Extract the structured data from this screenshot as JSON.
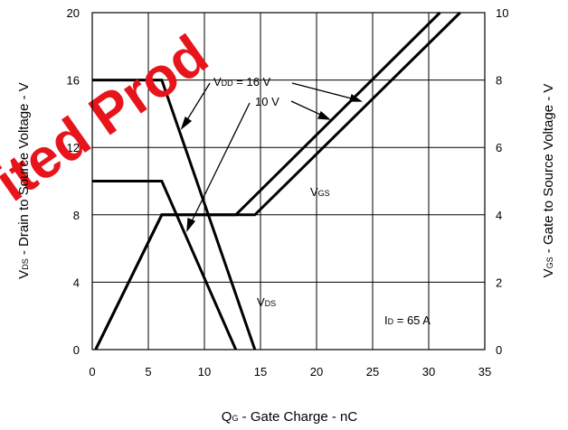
{
  "chart_data": {
    "type": "line",
    "title": "",
    "x": {
      "label_main": "Q",
      "label_sub": "G",
      "label_rest": " - Gate Charge - nC",
      "min": 0,
      "max": 35,
      "ticks": [
        0,
        5,
        10,
        15,
        20,
        25,
        30,
        35
      ]
    },
    "y_left": {
      "label_main": "V",
      "label_sub": "DS",
      "label_rest": " - Drain to Source Voltage - V",
      "min": 0,
      "max": 20,
      "ticks": [
        0,
        4,
        8,
        12,
        16,
        20
      ]
    },
    "y_right": {
      "label_main": "V",
      "label_sub": "GS",
      "label_rest": " - Gate to Source Voltage - V",
      "min": 0,
      "max": 10,
      "ticks": [
        0,
        2,
        4,
        6,
        8,
        10
      ]
    },
    "grid": true,
    "series": [
      {
        "axis": "left",
        "points": [
          [
            0,
            16
          ],
          [
            6.2,
            16
          ],
          [
            14.5,
            0
          ]
        ]
      },
      {
        "axis": "left",
        "points": [
          [
            0,
            10
          ],
          [
            6.2,
            10
          ],
          [
            12.8,
            0
          ]
        ]
      },
      {
        "axis": "right",
        "points": [
          [
            0.3,
            0
          ],
          [
            6.2,
            4
          ],
          [
            14.5,
            4
          ],
          [
            32.8,
            10
          ]
        ]
      },
      {
        "axis": "right",
        "points": [
          [
            0.3,
            0
          ],
          [
            6.2,
            4
          ],
          [
            12.8,
            4
          ],
          [
            31,
            10
          ]
        ]
      }
    ],
    "annotations": {
      "vdd": {
        "main": "V",
        "sub": "DD",
        "rest": " = 16 V"
      },
      "vdd2": "10 V",
      "vgs": {
        "main": "V",
        "sub": "GS"
      },
      "vds": {
        "main": "V",
        "sub": "DS"
      },
      "id": {
        "main": "I",
        "sub": "D",
        "rest": " = 65 A"
      }
    },
    "watermark": "ited Prod"
  }
}
